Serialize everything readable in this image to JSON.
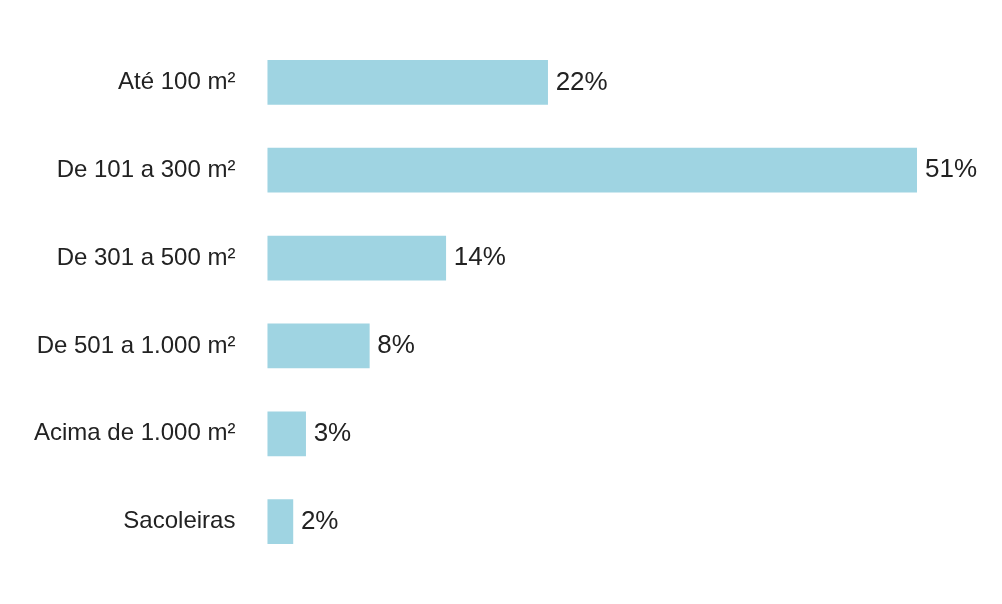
{
  "chart_data": {
    "type": "bar",
    "orientation": "horizontal",
    "categories": [
      "Até 100 m²",
      "De 101 a 300 m²",
      "De 301 a 500 m²",
      "De 501 a 1.000 m²",
      "Acima de 1.000 m²",
      "Sacoleiras"
    ],
    "values": [
      22,
      51,
      14,
      8,
      3,
      2
    ],
    "value_labels": [
      "22%",
      "51%",
      "14%",
      "8%",
      "3%",
      "2%"
    ],
    "color": "#9fd4e2",
    "grid": false,
    "legend": false
  }
}
